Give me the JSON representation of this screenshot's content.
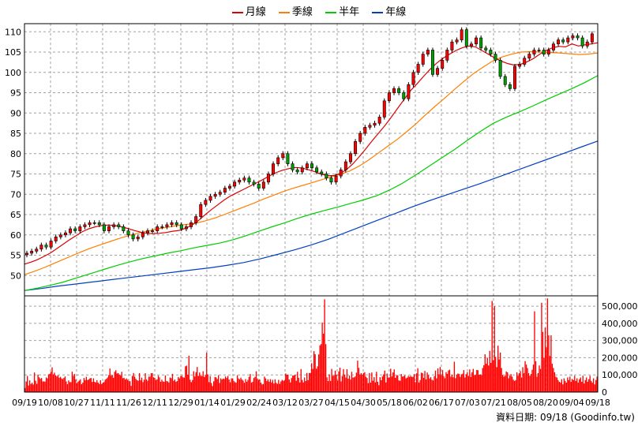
{
  "source_label": "資料日期: 09/18 (Goodinfo.tw)",
  "colors": {
    "up": "#ff0000",
    "down": "#00a000",
    "ma_month": "#dd0000",
    "ma_quarter": "#ff7f00",
    "ma_half": "#00cc00",
    "ma_year": "#0040c0",
    "volume": "#ff0000",
    "grid": "#a0a0a0"
  },
  "chart_data": [
    {
      "type": "candlestick",
      "legend": [
        {
          "name": "月線",
          "color": "#dd0000"
        },
        {
          "name": "季線",
          "color": "#ff7f00"
        },
        {
          "name": "半年",
          "color": "#00cc00"
        },
        {
          "name": "年線",
          "color": "#0040c0"
        }
      ],
      "ylim": [
        45,
        112
      ],
      "y_ticks": [
        50,
        55,
        60,
        65,
        70,
        75,
        80,
        85,
        90,
        95,
        100,
        105,
        110
      ],
      "x_tick_labels": [
        "09/19",
        "10/08",
        "10/27",
        "11/11",
        "11/26",
        "12/11",
        "12/29",
        "01/14",
        "01/29",
        "02/24",
        "03/12",
        "03/27",
        "04/15",
        "04/30",
        "05/18",
        "06/02",
        "06/17",
        "07/03",
        "07/21",
        "08/05",
        "08/20",
        "09/04",
        "09/18"
      ],
      "close": [
        55.5,
        56.0,
        56.5,
        57.5,
        57.0,
        58.5,
        59.5,
        60.0,
        60.5,
        61.5,
        61.0,
        62.0,
        62.5,
        63.0,
        63.0,
        62.5,
        61.0,
        62.0,
        62.5,
        62.0,
        61.0,
        60.0,
        59.0,
        59.5,
        60.5,
        61.0,
        61.0,
        62.0,
        62.0,
        62.5,
        63.0,
        62.5,
        61.5,
        62.0,
        63.0,
        64.5,
        67.5,
        68.5,
        69.5,
        70.0,
        70.5,
        71.5,
        72.0,
        73.0,
        73.5,
        74.0,
        73.0,
        72.5,
        71.5,
        73.0,
        75.0,
        77.5,
        79.0,
        80.0,
        77.5,
        76.0,
        75.5,
        76.5,
        77.5,
        76.5,
        75.5,
        75.0,
        74.0,
        73.0,
        74.5,
        76.0,
        78.0,
        80.0,
        83.0,
        85.0,
        86.5,
        87.0,
        87.5,
        89.0,
        93.0,
        95.0,
        96.0,
        95.0,
        93.5,
        97.0,
        100.0,
        102.0,
        104.5,
        105.5,
        99.5,
        101.0,
        103.0,
        105.5,
        107.5,
        108.0,
        110.5,
        106.5,
        107.0,
        108.5,
        106.0,
        105.5,
        104.5,
        103.0,
        99.0,
        97.0,
        96.0,
        101.5,
        102.0,
        103.5,
        104.5,
        105.5,
        105.5,
        104.5,
        105.5,
        107.0,
        108.0,
        107.5,
        108.5,
        109.0,
        108.5,
        106.5,
        107.5,
        109.5
      ],
      "ma_month": [
        52.8,
        53.3,
        53.9,
        54.7,
        55.5,
        56.6,
        57.7,
        58.8,
        59.8,
        60.8,
        61.5,
        62.0,
        62.3,
        62.4,
        62.3,
        62.0,
        61.6,
        61.1,
        60.7,
        60.4,
        60.3,
        60.4,
        60.6,
        60.9,
        61.1,
        61.6,
        62.4,
        63.5,
        64.9,
        66.2,
        67.4,
        68.6,
        69.6,
        70.4,
        71.2,
        72.0,
        72.8,
        73.6,
        74.5,
        75.3,
        75.9,
        76.3,
        76.6,
        76.5,
        76.1,
        75.6,
        75.0,
        74.6,
        74.6,
        75.1,
        76.1,
        77.5,
        79.3,
        81.2,
        83.2,
        85.1,
        87.0,
        89.1,
        91.3,
        93.5,
        95.6,
        97.3,
        99.1,
        100.8,
        102.3,
        103.5,
        104.5,
        105.4,
        106.1,
        106.5,
        106.3,
        105.4,
        104.5,
        103.6,
        102.8,
        102.2,
        101.8,
        102.0,
        102.6,
        103.4,
        104.5,
        105.4,
        106.1,
        106.4,
        106.3,
        107.0,
        106.5,
        106.8,
        107.0,
        107.3
      ],
      "ma_quarter": [
        50.2,
        51.0,
        51.9,
        52.9,
        53.9,
        54.9,
        55.9,
        56.8,
        57.6,
        58.4,
        59.2,
        59.9,
        60.5,
        61.0,
        61.5,
        61.9,
        62.3,
        62.6,
        62.9,
        63.5,
        64.2,
        65.1,
        66.0,
        66.9,
        67.8,
        68.8,
        69.7,
        70.6,
        71.4,
        72.1,
        72.8,
        73.5,
        74.2,
        74.9,
        75.7,
        76.9,
        78.4,
        80.1,
        81.8,
        83.5,
        85.4,
        87.4,
        89.6,
        91.7,
        93.7,
        95.8,
        97.8,
        99.7,
        101.3,
        102.8,
        103.8,
        104.5,
        105.0,
        105.1,
        105.0,
        104.9,
        104.8,
        104.6,
        104.4,
        104.5,
        104.8
      ],
      "ma_half": [
        46.3,
        46.9,
        47.6,
        48.4,
        49.4,
        50.4,
        51.4,
        52.4,
        53.3,
        54.1,
        54.8,
        55.5,
        56.1,
        56.8,
        57.4,
        58.0,
        58.8,
        59.8,
        60.9,
        62.0,
        63.0,
        64.1,
        65.1,
        66.0,
        66.8,
        67.7,
        68.6,
        69.6,
        71.0,
        72.7,
        74.7,
        76.8,
        78.9,
        81.0,
        83.3,
        85.5,
        87.5,
        89.0,
        90.3,
        91.7,
        93.2,
        94.6,
        96.0,
        97.5,
        99.2
      ],
      "ma_year": [
        46.3,
        46.8,
        47.4,
        47.9,
        48.4,
        48.9,
        49.4,
        49.9,
        50.4,
        50.9,
        51.4,
        51.9,
        52.5,
        53.2,
        54.1,
        55.2,
        56.3,
        57.5,
        58.9,
        60.5,
        62.1,
        63.7,
        65.3,
        66.9,
        68.4,
        69.8,
        71.2,
        72.6,
        74.1,
        75.6,
        77.1,
        78.6,
        80.1,
        81.6,
        83.1
      ]
    },
    {
      "type": "bar",
      "series": [
        {
          "name": "成交量",
          "color": "#ff0000"
        }
      ],
      "ylim": [
        0,
        560000
      ],
      "y_ticks": [
        0,
        100000,
        200000,
        300000,
        400000,
        500000
      ],
      "y_tick_labels": [
        "0",
        "100,000",
        "200,000",
        "300,000",
        "400,000",
        "500,000"
      ],
      "values": [
        24000,
        62000,
        94000,
        38000,
        68000,
        47000,
        54000,
        44000,
        114000,
        66000,
        48000,
        102000,
        86000,
        77000,
        82000,
        62000,
        62000,
        61000,
        85000,
        80000,
        103000,
        107000,
        118000,
        144000,
        103000,
        113000,
        98000,
        91000,
        98000,
        83000,
        89000,
        80000,
        76000,
        83000,
        91000,
        62000,
        46000,
        68000,
        58000,
        58000,
        119000,
        94000,
        105000,
        73000,
        52000,
        61000,
        67000,
        74000,
        46000,
        55000,
        82000,
        69000,
        89000,
        70000,
        73000,
        80000,
        82000,
        59000,
        80000,
        60000,
        56000,
        69000,
        55000,
        47000,
        69000,
        47000,
        55000,
        58000,
        72000,
        77000,
        85000,
        99000,
        137000,
        95000,
        100000,
        83000,
        118000,
        127000,
        108000,
        110000,
        102000,
        96000,
        118000,
        81000,
        83000,
        73000,
        80000,
        72000,
        65000,
        63000,
        36000,
        94000,
        111000,
        90000,
        77000,
        69000,
        66000,
        110000,
        69000,
        84000,
        58000,
        72000,
        110000,
        74000,
        66000,
        90000,
        90000,
        110000,
        110000,
        86000,
        83000,
        71000,
        74000,
        96000,
        86000,
        60000,
        72000,
        62000,
        60000,
        97000,
        64000,
        62000,
        55000,
        85000,
        81000,
        106000,
        66000,
        73000,
        60000,
        64000,
        88000,
        80000,
        92000,
        95000,
        86000,
        84000,
        150000,
        154000,
        101000,
        212000,
        72000,
        58000,
        70000,
        121000,
        91000,
        116000,
        146000,
        94000,
        114000,
        95000,
        93000,
        121000,
        88000,
        98000,
        230000,
        103000,
        58000,
        93000,
        53000,
        35000,
        63000,
        88000,
        86000,
        76000,
        98000,
        53000,
        80000,
        73000,
        79000,
        76000,
        91000,
        82000,
        94000,
        73000,
        57000,
        80000,
        80000,
        65000,
        58000,
        55000,
        98000,
        80000,
        74000,
        84000,
        73000,
        67000,
        54000,
        76000,
        60000,
        71000,
        89000,
        105000,
        55000,
        60000,
        82000,
        88000,
        121000,
        79000,
        70000,
        73000,
        55000,
        45000,
        47000,
        90000,
        80000,
        64000,
        74000,
        60000,
        75000,
        56000,
        71000,
        50000,
        74000,
        54000,
        48000,
        71000,
        48000,
        62000,
        71000,
        66000,
        68000,
        108000,
        101000,
        102000,
        73000,
        56000,
        82000,
        96000,
        97000,
        101000,
        66000,
        118000,
        83000,
        56000,
        134000,
        71000,
        56000,
        85000,
        64000,
        111000,
        69000,
        111000,
        112000,
        168000,
        135000,
        238000,
        220000,
        136000,
        150000,
        219000,
        272000,
        279000,
        405000,
        340000,
        540000,
        279000,
        86000,
        64000,
        103000,
        65000,
        135000,
        95000,
        96000,
        125000,
        101000,
        67000,
        120000,
        142000,
        62000,
        93000,
        134000,
        102000,
        84000,
        133000,
        78000,
        96000,
        73000,
        118000,
        85000,
        86000,
        91000,
        113000,
        183000,
        141000,
        103000,
        110000,
        100000,
        111000,
        116000,
        90000,
        82000,
        52000,
        111000,
        55000,
        114000,
        66000,
        87000,
        57000,
        118000,
        60000,
        40000,
        87000,
        69000,
        91000,
        103000,
        125000,
        56000,
        108000,
        84000,
        86000,
        136000,
        91000,
        114000,
        132000,
        83000,
        98000,
        98000,
        68000,
        66000,
        105000,
        90000,
        92000,
        97000,
        80000,
        84000,
        94000,
        89000,
        95000,
        88000,
        90000,
        104000,
        58000,
        109000,
        139000,
        56000,
        70000,
        113000,
        110000,
        83000,
        123000,
        74000,
        114000,
        99000,
        79000,
        87000,
        72000,
        68000,
        92000,
        125000,
        80000,
        138000,
        103000,
        146000,
        99000,
        128000,
        93000,
        81000,
        116000,
        106000,
        126000,
        130000,
        90000,
        101000,
        86000,
        177000,
        81000,
        100000,
        108000,
        106000,
        89000,
        103000,
        107000,
        128000,
        85000,
        104000,
        116000,
        94000,
        132000,
        89000,
        115000,
        135000,
        99000,
        99000,
        129000,
        127000,
        101000,
        103000,
        99000,
        140000,
        156000,
        220000,
        165000,
        200000,
        155000,
        240000,
        170000,
        530000,
        185000,
        500000,
        205000,
        145000,
        270000,
        190000,
        230000,
        140000,
        100000,
        90000,
        95000,
        120000,
        115000,
        80000,
        95000,
        105000,
        90000,
        72000,
        65000,
        70000,
        115000,
        95000,
        110000,
        122000,
        85000,
        145000,
        110000,
        180000,
        160000,
        140000,
        110000,
        95000,
        105000,
        130000,
        160000,
        470000,
        180000,
        90000,
        110000,
        155000,
        135000,
        520000,
        350000,
        200000,
        375000,
        260000,
        545000,
        330000,
        210000,
        330000,
        165000,
        140000,
        115000,
        90000,
        85000,
        70000,
        60000,
        55000,
        75000,
        45000,
        80000,
        65000,
        55000,
        85000,
        70000,
        90000,
        60000,
        75000,
        70000,
        95000,
        65000,
        80000,
        55000,
        75000,
        85000,
        60000,
        95000,
        50000,
        70000,
        85000,
        60000,
        75000,
        95000,
        65000,
        55000,
        80000,
        45000,
        70000,
        90000
      ]
    }
  ]
}
